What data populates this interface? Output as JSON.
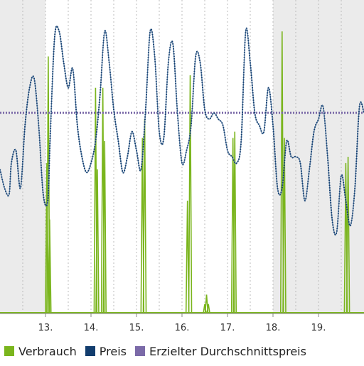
{
  "chart_data": {
    "type": "line",
    "x_unit": "day",
    "xlim": [
      12.0,
      20.0
    ],
    "ylim": [
      0,
      100
    ],
    "x_ticks": [
      13,
      14,
      15,
      16,
      17,
      18,
      19
    ],
    "x_tick_labels": [
      "13.",
      "14.",
      "15.",
      "16.",
      "17.",
      "18.",
      "19."
    ],
    "shaded_ranges": [
      [
        12.0,
        13.0
      ],
      [
        18.0,
        20.0
      ]
    ],
    "grid": true,
    "legend_position": "bottom",
    "colors": {
      "verbrauch": "#7ab51d",
      "preis": "#123d6e",
      "preis_line": "#5b7fa6",
      "durchschnitt": "#7b6aa8",
      "shade": "#ebebeb",
      "grid": "#bbbbbb"
    },
    "series": [
      {
        "name": "Verbrauch",
        "style": "spikes",
        "x": [
          12.0,
          13.03,
          13.06,
          13.09,
          14.1,
          14.14,
          14.26,
          14.3,
          15.13,
          15.18,
          16.12,
          16.18,
          16.5,
          16.54,
          16.58,
          17.12,
          17.16,
          18.2,
          18.25,
          19.6,
          19.65
        ],
        "values": [
          0,
          48,
          82,
          30,
          72,
          46,
          72,
          55,
          56,
          62,
          36,
          76,
          3,
          6,
          3,
          56,
          58,
          90,
          56,
          48,
          50
        ]
      },
      {
        "name": "Preis",
        "style": "dotted-line",
        "x": [
          12.0,
          12.1,
          12.2,
          12.25,
          12.35,
          12.45,
          12.55,
          12.65,
          12.75,
          12.85,
          12.95,
          13.05,
          13.1,
          13.2,
          13.3,
          13.4,
          13.5,
          13.6,
          13.7,
          13.8,
          13.9,
          14.0,
          14.1,
          14.2,
          14.3,
          14.4,
          14.5,
          14.6,
          14.7,
          14.8,
          14.9,
          15.0,
          15.1,
          15.2,
          15.3,
          15.4,
          15.5,
          15.6,
          15.7,
          15.8,
          15.9,
          16.0,
          16.1,
          16.2,
          16.3,
          16.4,
          16.5,
          16.6,
          16.7,
          16.8,
          16.9,
          17.0,
          17.1,
          17.2,
          17.3,
          17.4,
          17.5,
          17.6,
          17.7,
          17.8,
          17.9,
          18.0,
          18.1,
          18.2,
          18.3,
          18.4,
          18.5,
          18.6,
          18.7,
          18.8,
          18.9,
          19.0,
          19.1,
          19.2,
          19.3,
          19.4,
          19.5,
          19.6,
          19.7,
          19.8,
          19.9,
          20.0
        ],
        "values": [
          46,
          40,
          38,
          48,
          52,
          40,
          60,
          72,
          75,
          60,
          38,
          36,
          55,
          88,
          90,
          80,
          72,
          78,
          60,
          50,
          45,
          48,
          55,
          70,
          90,
          80,
          65,
          55,
          45,
          50,
          58,
          52,
          46,
          65,
          90,
          82,
          58,
          56,
          80,
          86,
          64,
          48,
          52,
          60,
          82,
          80,
          65,
          62,
          64,
          62,
          60,
          52,
          50,
          48,
          55,
          90,
          80,
          64,
          60,
          58,
          72,
          60,
          40,
          40,
          55,
          50,
          50,
          48,
          36,
          46,
          58,
          62,
          66,
          50,
          30,
          26,
          44,
          36,
          28,
          40,
          66,
          64
        ]
      },
      {
        "name": "Erzielter Durchschnittspreis",
        "style": "dotted-constant",
        "x": [
          12.0,
          20.0
        ],
        "values": [
          64,
          64
        ]
      }
    ]
  },
  "legend": [
    {
      "label": "Verbrauch",
      "color": "#7ab51d"
    },
    {
      "label": "Preis",
      "color": "#123d6e"
    },
    {
      "label": "Erzielter Durchschnittspreis",
      "color": "#7b6aa8"
    }
  ]
}
